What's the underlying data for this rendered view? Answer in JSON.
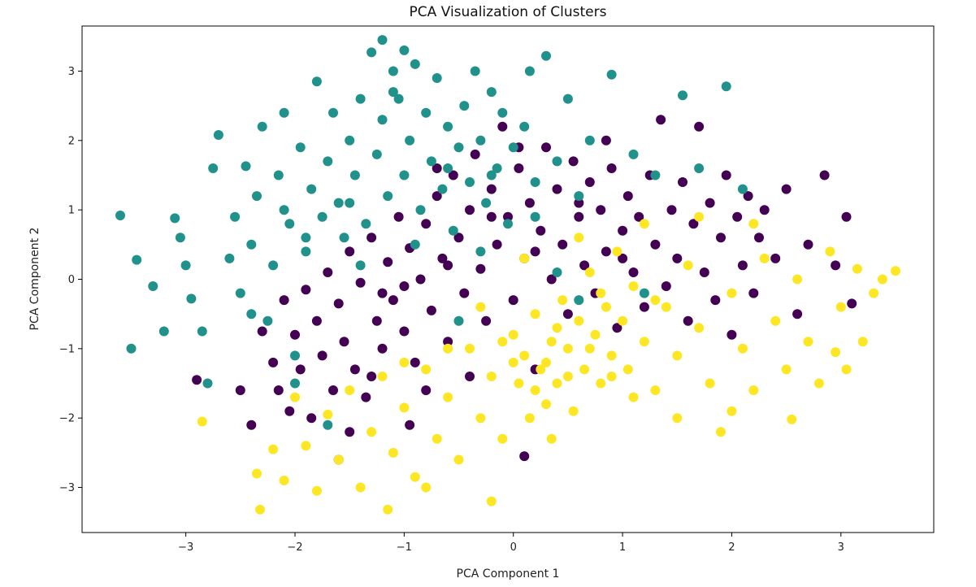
{
  "chart_data": {
    "type": "scatter",
    "title": "PCA Visualization of Clusters",
    "xlabel": "PCA Component 1",
    "ylabel": "PCA Component 2",
    "xlim": [
      -3.95,
      3.85
    ],
    "ylim": [
      -3.65,
      3.65
    ],
    "xticks": [
      -3,
      -2,
      -1,
      0,
      1,
      2,
      3
    ],
    "yticks": [
      -3,
      -2,
      -1,
      0,
      1,
      2,
      3
    ],
    "grid": false,
    "series": [
      {
        "color": "#440154",
        "points": [
          [
            -2.9,
            -1.45
          ],
          [
            -2.4,
            -2.1
          ],
          [
            -2.5,
            -1.6
          ],
          [
            -2.3,
            -0.75
          ],
          [
            -2.2,
            -1.2
          ],
          [
            -2.15,
            -1.6
          ],
          [
            -2.1,
            -0.3
          ],
          [
            -2.05,
            -1.9
          ],
          [
            -2.0,
            -0.8
          ],
          [
            -1.95,
            -1.3
          ],
          [
            -1.9,
            -0.15
          ],
          [
            -1.85,
            -2.0
          ],
          [
            -1.8,
            -0.6
          ],
          [
            -1.75,
            -1.1
          ],
          [
            -1.7,
            0.1
          ],
          [
            -1.65,
            -1.6
          ],
          [
            -1.6,
            -0.35
          ],
          [
            -1.55,
            -0.9
          ],
          [
            -1.5,
            -2.2
          ],
          [
            -1.5,
            0.4
          ],
          [
            -1.45,
            -1.3
          ],
          [
            -1.4,
            -0.05
          ],
          [
            -1.35,
            -1.7
          ],
          [
            -1.3,
            0.6
          ],
          [
            -1.25,
            -0.6
          ],
          [
            -1.2,
            -1.0
          ],
          [
            -1.15,
            0.25
          ],
          [
            -1.1,
            -0.3
          ],
          [
            -1.05,
            0.9
          ],
          [
            -1.0,
            -0.75
          ],
          [
            -0.95,
            0.45
          ],
          [
            -0.9,
            -1.2
          ],
          [
            -0.85,
            0.0
          ],
          [
            -0.8,
            0.8
          ],
          [
            -0.75,
            -0.45
          ],
          [
            -0.7,
            1.2
          ],
          [
            -0.65,
            0.3
          ],
          [
            -0.6,
            -0.9
          ],
          [
            -0.55,
            1.5
          ],
          [
            -0.5,
            0.6
          ],
          [
            -0.45,
            -0.2
          ],
          [
            -0.4,
            1.0
          ],
          [
            -0.35,
            1.8
          ],
          [
            -0.3,
            0.15
          ],
          [
            -0.25,
            -0.6
          ],
          [
            -0.2,
            1.3
          ],
          [
            -0.15,
            0.5
          ],
          [
            -0.1,
            2.2
          ],
          [
            -0.05,
            0.9
          ],
          [
            0.0,
            -0.3
          ],
          [
            0.05,
            1.6
          ],
          [
            0.1,
            0.3
          ],
          [
            0.15,
            1.1
          ],
          [
            0.2,
            -1.3
          ],
          [
            0.25,
            0.7
          ],
          [
            0.3,
            1.9
          ],
          [
            0.35,
            0.0
          ],
          [
            0.4,
            1.3
          ],
          [
            0.45,
            0.5
          ],
          [
            0.5,
            -0.5
          ],
          [
            0.55,
            1.7
          ],
          [
            0.6,
            0.9
          ],
          [
            0.65,
            0.2
          ],
          [
            0.7,
            1.4
          ],
          [
            0.75,
            -0.2
          ],
          [
            0.8,
            1.0
          ],
          [
            0.85,
            0.4
          ],
          [
            0.9,
            1.6
          ],
          [
            0.95,
            -0.7
          ],
          [
            1.0,
            0.7
          ],
          [
            1.05,
            1.2
          ],
          [
            1.1,
            0.1
          ],
          [
            1.15,
            0.9
          ],
          [
            1.2,
            -0.4
          ],
          [
            1.25,
            1.5
          ],
          [
            1.3,
            0.5
          ],
          [
            1.35,
            2.3
          ],
          [
            1.4,
            -0.1
          ],
          [
            1.45,
            1.0
          ],
          [
            1.5,
            0.3
          ],
          [
            1.55,
            1.4
          ],
          [
            1.6,
            -0.6
          ],
          [
            1.65,
            0.8
          ],
          [
            1.7,
            2.2
          ],
          [
            1.75,
            0.1
          ],
          [
            1.8,
            1.1
          ],
          [
            1.85,
            -0.3
          ],
          [
            1.9,
            0.6
          ],
          [
            1.95,
            1.5
          ],
          [
            2.0,
            -0.8
          ],
          [
            2.05,
            0.9
          ],
          [
            2.1,
            0.2
          ],
          [
            2.15,
            1.2
          ],
          [
            2.2,
            -0.2
          ],
          [
            2.25,
            0.6
          ],
          [
            2.3,
            1.0
          ],
          [
            2.4,
            0.3
          ],
          [
            2.5,
            1.3
          ],
          [
            2.6,
            -0.5
          ],
          [
            2.7,
            0.5
          ],
          [
            2.85,
            1.5
          ],
          [
            2.95,
            0.2
          ],
          [
            3.05,
            0.9
          ],
          [
            3.1,
            -0.35
          ],
          [
            -1.0,
            -0.1
          ],
          [
            -0.6,
            0.2
          ],
          [
            -0.2,
            0.9
          ],
          [
            0.2,
            0.4
          ],
          [
            0.6,
            1.1
          ],
          [
            1.0,
            0.3
          ],
          [
            -1.3,
            -1.4
          ],
          [
            -0.8,
            -1.6
          ],
          [
            -0.4,
            -1.4
          ],
          [
            0.1,
            -2.55
          ],
          [
            -0.95,
            -2.1
          ],
          [
            -1.6,
            -2.6
          ],
          [
            -1.2,
            -0.2
          ],
          [
            -0.7,
            1.6
          ],
          [
            0.05,
            1.9
          ],
          [
            0.85,
            2.0
          ]
        ]
      },
      {
        "color": "#21918c",
        "points": [
          [
            -3.6,
            0.92
          ],
          [
            -3.45,
            0.28
          ],
          [
            -3.5,
            -1.0
          ],
          [
            -3.3,
            -0.1
          ],
          [
            -3.2,
            -0.75
          ],
          [
            -3.1,
            0.88
          ],
          [
            -3.05,
            0.6
          ],
          [
            -3.0,
            0.2
          ],
          [
            -2.95,
            -0.28
          ],
          [
            -2.85,
            -0.75
          ],
          [
            -2.8,
            -1.5
          ],
          [
            -2.75,
            1.6
          ],
          [
            -2.7,
            2.08
          ],
          [
            -2.6,
            0.3
          ],
          [
            -2.55,
            0.9
          ],
          [
            -2.5,
            -0.2
          ],
          [
            -2.45,
            1.63
          ],
          [
            -2.4,
            0.5
          ],
          [
            -2.35,
            1.2
          ],
          [
            -2.3,
            2.2
          ],
          [
            -2.25,
            -0.6
          ],
          [
            -2.2,
            0.2
          ],
          [
            -2.15,
            1.5
          ],
          [
            -2.1,
            2.4
          ],
          [
            -2.05,
            0.8
          ],
          [
            -2.0,
            -1.1
          ],
          [
            -1.95,
            1.9
          ],
          [
            -1.9,
            0.4
          ],
          [
            -1.85,
            1.3
          ],
          [
            -1.8,
            2.85
          ],
          [
            -1.75,
            0.9
          ],
          [
            -1.7,
            1.7
          ],
          [
            -1.65,
            2.4
          ],
          [
            -1.6,
            1.1
          ],
          [
            -1.55,
            0.6
          ],
          [
            -1.5,
            2.0
          ],
          [
            -1.45,
            1.5
          ],
          [
            -1.4,
            2.6
          ],
          [
            -1.35,
            0.8
          ],
          [
            -1.3,
            3.27
          ],
          [
            -1.25,
            1.8
          ],
          [
            -1.2,
            2.3
          ],
          [
            -1.15,
            1.2
          ],
          [
            -1.1,
            3.0
          ],
          [
            -1.05,
            2.6
          ],
          [
            -1.0,
            1.5
          ],
          [
            -0.95,
            2.0
          ],
          [
            -0.9,
            3.1
          ],
          [
            -0.85,
            1.0
          ],
          [
            -0.8,
            2.4
          ],
          [
            -0.75,
            1.7
          ],
          [
            -0.7,
            2.9
          ],
          [
            -0.65,
            1.3
          ],
          [
            -0.6,
            2.2
          ],
          [
            -0.55,
            0.7
          ],
          [
            -0.5,
            1.9
          ],
          [
            -0.45,
            2.5
          ],
          [
            -0.4,
            1.4
          ],
          [
            -0.35,
            3.0
          ],
          [
            -0.3,
            2.0
          ],
          [
            -0.25,
            1.1
          ],
          [
            -0.2,
            2.7
          ],
          [
            -0.15,
            1.6
          ],
          [
            -0.1,
            2.4
          ],
          [
            -0.05,
            0.8
          ],
          [
            0.0,
            1.9
          ],
          [
            0.1,
            2.2
          ],
          [
            0.15,
            3.0
          ],
          [
            0.2,
            1.4
          ],
          [
            0.3,
            3.22
          ],
          [
            0.4,
            1.7
          ],
          [
            0.5,
            2.6
          ],
          [
            0.6,
            1.2
          ],
          [
            0.7,
            2.0
          ],
          [
            0.9,
            2.95
          ],
          [
            1.1,
            1.8
          ],
          [
            1.3,
            1.5
          ],
          [
            1.55,
            2.65
          ],
          [
            1.7,
            1.6
          ],
          [
            1.95,
            2.78
          ],
          [
            2.1,
            1.3
          ],
          [
            -1.2,
            3.45
          ],
          [
            -1.0,
            3.3
          ],
          [
            -2.4,
            -0.5
          ],
          [
            -2.0,
            -1.5
          ],
          [
            -1.7,
            -2.1
          ],
          [
            -0.5,
            -0.6
          ],
          [
            0.4,
            0.1
          ],
          [
            1.2,
            -0.2
          ],
          [
            -1.4,
            0.2
          ],
          [
            -0.9,
            0.5
          ],
          [
            -0.3,
            0.4
          ],
          [
            0.2,
            0.9
          ],
          [
            0.6,
            -0.3
          ],
          [
            -1.1,
            2.7
          ],
          [
            -0.6,
            1.6
          ],
          [
            -0.2,
            1.5
          ],
          [
            -1.5,
            1.1
          ],
          [
            -2.1,
            1.0
          ],
          [
            -1.9,
            0.6
          ]
        ]
      },
      {
        "color": "#fde725",
        "points": [
          [
            -2.85,
            -2.05
          ],
          [
            -2.35,
            -2.8
          ],
          [
            -2.32,
            -3.32
          ],
          [
            -2.2,
            -2.45
          ],
          [
            -2.1,
            -2.9
          ],
          [
            -2.0,
            -1.7
          ],
          [
            -1.9,
            -2.4
          ],
          [
            -1.8,
            -3.05
          ],
          [
            -1.7,
            -1.95
          ],
          [
            -1.6,
            -2.6
          ],
          [
            -1.5,
            -1.6
          ],
          [
            -1.4,
            -3.0
          ],
          [
            -1.3,
            -2.2
          ],
          [
            -1.2,
            -1.4
          ],
          [
            -1.15,
            -3.32
          ],
          [
            -1.1,
            -2.5
          ],
          [
            -1.0,
            -1.85
          ],
          [
            -0.9,
            -2.85
          ],
          [
            -0.8,
            -1.3
          ],
          [
            -0.7,
            -2.3
          ],
          [
            -0.6,
            -1.7
          ],
          [
            -0.5,
            -2.6
          ],
          [
            -0.4,
            -1.0
          ],
          [
            -0.3,
            -2.0
          ],
          [
            -0.2,
            -1.4
          ],
          [
            -0.1,
            -2.3
          ],
          [
            0.0,
            -0.8
          ],
          [
            0.05,
            -1.5
          ],
          [
            0.1,
            -1.1
          ],
          [
            0.15,
            -2.0
          ],
          [
            0.2,
            -0.5
          ],
          [
            0.25,
            -1.3
          ],
          [
            0.3,
            -1.8
          ],
          [
            0.35,
            -0.9
          ],
          [
            0.4,
            -1.5
          ],
          [
            0.45,
            -0.3
          ],
          [
            0.5,
            -1.0
          ],
          [
            0.55,
            -1.9
          ],
          [
            0.6,
            -0.6
          ],
          [
            0.65,
            -1.3
          ],
          [
            0.7,
            0.1
          ],
          [
            0.75,
            -0.8
          ],
          [
            0.8,
            -1.5
          ],
          [
            0.85,
            -0.4
          ],
          [
            0.9,
            -1.1
          ],
          [
            0.95,
            0.4
          ],
          [
            1.0,
            -0.6
          ],
          [
            1.05,
            -1.3
          ],
          [
            1.1,
            -0.1
          ],
          [
            1.2,
            -0.9
          ],
          [
            1.3,
            -1.6
          ],
          [
            1.4,
            -0.4
          ],
          [
            1.5,
            -1.1
          ],
          [
            1.6,
            0.2
          ],
          [
            1.7,
            -0.7
          ],
          [
            1.8,
            -1.5
          ],
          [
            1.9,
            -2.2
          ],
          [
            2.0,
            -0.2
          ],
          [
            2.1,
            -1.0
          ],
          [
            2.2,
            -1.6
          ],
          [
            2.3,
            0.3
          ],
          [
            2.4,
            -0.6
          ],
          [
            2.5,
            -1.3
          ],
          [
            2.55,
            -2.02
          ],
          [
            2.6,
            0.0
          ],
          [
            2.7,
            -0.9
          ],
          [
            2.8,
            -1.5
          ],
          [
            2.9,
            0.4
          ],
          [
            3.0,
            -0.4
          ],
          [
            3.05,
            -1.3
          ],
          [
            3.15,
            0.15
          ],
          [
            3.3,
            -0.2
          ],
          [
            3.38,
            0.0
          ],
          [
            3.5,
            0.12
          ],
          [
            3.2,
            -0.9
          ],
          [
            2.95,
            -1.05
          ],
          [
            -0.3,
            -0.4
          ],
          [
            0.1,
            0.3
          ],
          [
            0.6,
            0.6
          ],
          [
            1.2,
            0.8
          ],
          [
            1.7,
            0.9
          ],
          [
            2.2,
            0.8
          ],
          [
            0.0,
            -1.2
          ],
          [
            0.3,
            -1.2
          ],
          [
            0.5,
            -1.4
          ],
          [
            0.7,
            -1.0
          ],
          [
            -0.1,
            -0.9
          ],
          [
            0.2,
            -1.6
          ],
          [
            0.9,
            -1.4
          ],
          [
            1.3,
            -0.3
          ],
          [
            -0.6,
            -1.0
          ],
          [
            -1.0,
            -1.2
          ],
          [
            0.4,
            -0.7
          ],
          [
            0.8,
            -0.2
          ],
          [
            1.1,
            -1.7
          ],
          [
            -0.2,
            -3.2
          ],
          [
            0.35,
            -2.3
          ],
          [
            -0.8,
            -3.0
          ],
          [
            1.5,
            -2.0
          ],
          [
            2.0,
            -1.9
          ]
        ]
      }
    ]
  }
}
